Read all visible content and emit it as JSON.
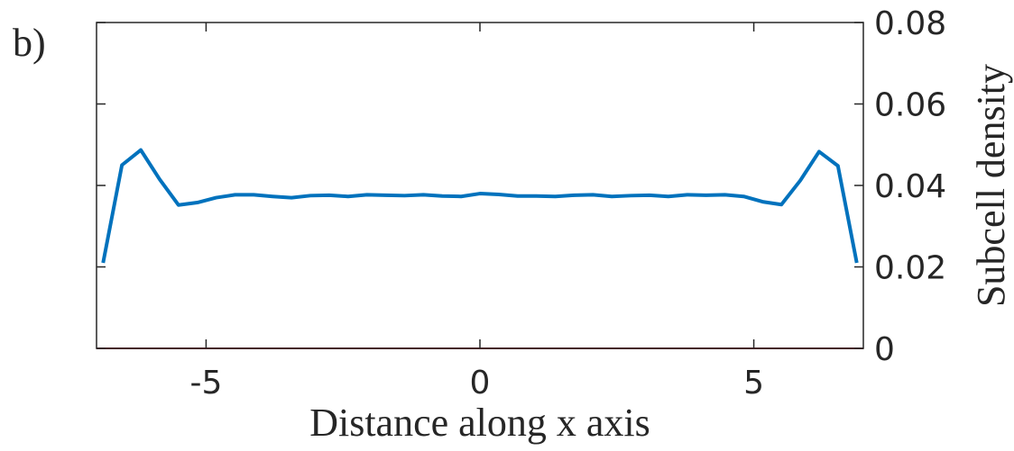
{
  "chart_data": {
    "type": "line",
    "panel_label": "b)",
    "xlabel": "Distance along x axis",
    "ylabel": "Subcell density",
    "xlim": [
      -7,
      7
    ],
    "xticks": [
      -5,
      0,
      5
    ],
    "ylim": [
      0,
      0.08
    ],
    "yticks": [
      0,
      0.02,
      0.04,
      0.06,
      0.08
    ],
    "y_axis_side": "right",
    "series": [
      {
        "color": "#0072bd",
        "x": [
          -6.88,
          -6.536,
          -6.192,
          -5.848,
          -5.504,
          -5.16,
          -4.816,
          -4.472,
          -4.128,
          -3.784,
          -3.44,
          -3.096,
          -2.752,
          -2.408,
          -2.064,
          -1.72,
          -1.376,
          -1.032,
          -0.688,
          -0.344,
          0,
          0.344,
          0.688,
          1.032,
          1.376,
          1.72,
          2.064,
          2.408,
          2.752,
          3.096,
          3.44,
          3.784,
          4.128,
          4.472,
          4.816,
          5.16,
          5.504,
          5.848,
          6.192,
          6.536,
          6.88
        ],
        "values": [
          0.021,
          0.045,
          0.0487,
          0.0415,
          0.0352,
          0.0358,
          0.037,
          0.0377,
          0.0377,
          0.0373,
          0.037,
          0.0375,
          0.0376,
          0.0373,
          0.0377,
          0.0376,
          0.0375,
          0.0377,
          0.0374,
          0.0373,
          0.038,
          0.0378,
          0.0374,
          0.0374,
          0.0373,
          0.0376,
          0.0377,
          0.0373,
          0.0375,
          0.0376,
          0.0373,
          0.0377,
          0.0376,
          0.0377,
          0.0373,
          0.036,
          0.0353,
          0.0412,
          0.0483,
          0.0448,
          0.021
        ]
      },
      {
        "color": "#a2142f",
        "x": [
          -7,
          7
        ],
        "values": [
          0,
          0
        ]
      }
    ]
  }
}
